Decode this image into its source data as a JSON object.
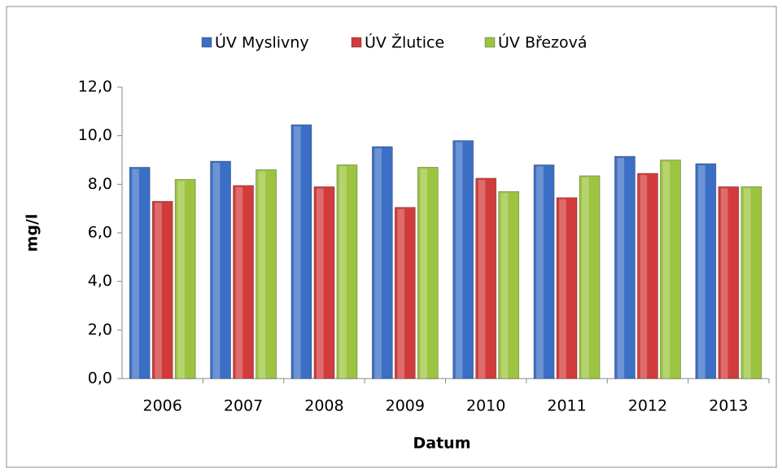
{
  "chart_data": {
    "type": "bar",
    "x_label": "Datum",
    "y_label": "mg/l",
    "categories": [
      "2006",
      "2007",
      "2008",
      "2009",
      "2010",
      "2011",
      "2012",
      "2013"
    ],
    "series": [
      {
        "name": "ÚV Myslivny",
        "color": "#3b6fc6",
        "values": [
          8.7,
          8.95,
          10.45,
          9.55,
          9.8,
          8.8,
          9.15,
          8.85
        ]
      },
      {
        "name": "ÚV Žlutice",
        "color": "#d23b3b",
        "values": [
          7.3,
          7.95,
          7.9,
          7.05,
          8.25,
          7.45,
          8.45,
          7.9
        ]
      },
      {
        "name": "ÚV Březová",
        "color": "#9cc43f",
        "values": [
          8.2,
          8.6,
          8.8,
          8.7,
          7.7,
          8.35,
          9.0,
          7.9
        ]
      }
    ],
    "ylim": [
      0,
      12
    ],
    "yticks": [
      {
        "value": 0,
        "label": "0,0"
      },
      {
        "value": 2,
        "label": "2,0"
      },
      {
        "value": 4,
        "label": "4,0"
      },
      {
        "value": 6,
        "label": "6,0"
      },
      {
        "value": 8,
        "label": "8,0"
      },
      {
        "value": 10,
        "label": "10,0"
      },
      {
        "value": 12,
        "label": "12,0"
      }
    ],
    "grid": false,
    "legend": "top"
  }
}
